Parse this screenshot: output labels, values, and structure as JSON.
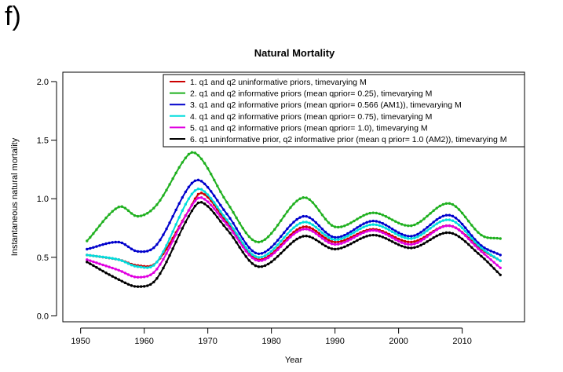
{
  "panel_label": "f)",
  "chart_data": {
    "type": "line",
    "title": "Natural Mortality",
    "xlabel": "Year",
    "ylabel": "Instantaneous natural mortality",
    "xlim": [
      1947.2,
      2019.8
    ],
    "ylim": [
      -0.05,
      2.08
    ],
    "x_ticks": [
      1950,
      1960,
      1970,
      1980,
      1990,
      2000,
      2010
    ],
    "y_ticks": [
      0.0,
      0.5,
      1.0,
      1.5,
      2.0
    ],
    "y_tick_labels": [
      "0.0",
      "0.5",
      "1.0",
      "1.5",
      "2.0"
    ],
    "grid": false,
    "legend_position": "top-right",
    "markers": "filled-circle",
    "x": [
      1951,
      1956,
      1959,
      1962,
      1967,
      1969,
      1973,
      1978,
      1985,
      1990,
      1996,
      2002,
      2008,
      2013,
      2016
    ],
    "series": [
      {
        "name": "1. q1 and q2 uninformative priors, timevarying M",
        "color": "#cc0000",
        "values": [
          0.52,
          0.48,
          0.43,
          0.46,
          0.9,
          1.05,
          0.8,
          0.48,
          0.76,
          0.63,
          0.74,
          0.63,
          0.77,
          0.57,
          0.47
        ]
      },
      {
        "name": "2. q1 and q2 informative priors (mean qprior= 0.25), timevarying M",
        "color": "#1fb01f",
        "values": [
          0.64,
          0.93,
          0.85,
          0.95,
          1.38,
          1.34,
          0.97,
          0.63,
          1.01,
          0.76,
          0.88,
          0.77,
          0.96,
          0.69,
          0.66
        ]
      },
      {
        "name": "3. q1 and q2 informative priors (mean qprior= 0.566 (AM1)), timevarying M",
        "color": "#0000cc",
        "values": [
          0.57,
          0.63,
          0.55,
          0.61,
          1.1,
          1.15,
          0.87,
          0.53,
          0.85,
          0.67,
          0.81,
          0.68,
          0.86,
          0.6,
          0.52
        ]
      },
      {
        "name": "4. q1 and q2 informative priors (mean qprior= 0.75), timevarying M",
        "color": "#00dddd",
        "values": [
          0.52,
          0.48,
          0.42,
          0.46,
          1.0,
          1.08,
          0.82,
          0.5,
          0.8,
          0.65,
          0.78,
          0.66,
          0.82,
          0.58,
          0.47
        ]
      },
      {
        "name": "5. q1 and q2 informative priors (mean qprior= 1.0), timevarying M",
        "color": "#e000e0",
        "values": [
          0.48,
          0.39,
          0.33,
          0.4,
          0.9,
          1.01,
          0.78,
          0.47,
          0.74,
          0.61,
          0.73,
          0.61,
          0.77,
          0.55,
          0.41
        ]
      },
      {
        "name": "6. q1 uninformative prior, q2 informative prior (mean q prior= 1.0 (AM2)), timevarying M",
        "color": "#000000",
        "values": [
          0.46,
          0.31,
          0.25,
          0.32,
          0.85,
          0.97,
          0.74,
          0.42,
          0.68,
          0.57,
          0.69,
          0.58,
          0.71,
          0.51,
          0.35
        ]
      }
    ]
  }
}
